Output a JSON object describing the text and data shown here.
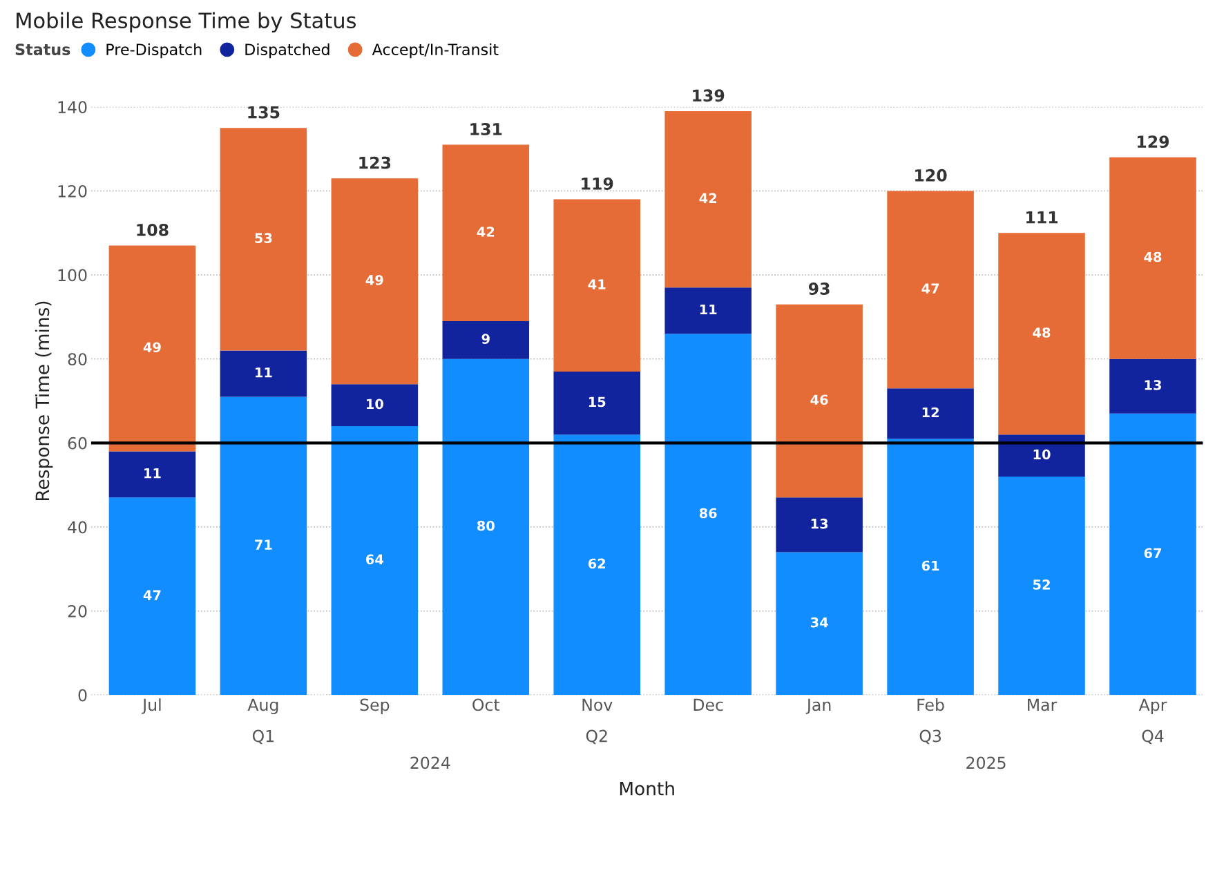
{
  "chart_data": {
    "type": "bar",
    "title": "Mobile Response Time by Status",
    "xlabel": "Month",
    "ylabel": "Response Time (mins)",
    "legend_title": "Status",
    "categories": [
      "Jul",
      "Aug",
      "Sep",
      "Oct",
      "Nov",
      "Dec",
      "Jan",
      "Feb",
      "Mar",
      "Apr"
    ],
    "series": [
      {
        "name": "Pre-Dispatch",
        "color": "#118dff",
        "values": [
          47,
          71,
          64,
          80,
          62,
          86,
          34,
          61,
          52,
          67
        ]
      },
      {
        "name": "Dispatched",
        "color": "#12239e",
        "values": [
          11,
          11,
          10,
          9,
          15,
          11,
          13,
          12,
          10,
          13
        ]
      },
      {
        "name": "Accept/In-Transit",
        "color": "#e66c37",
        "values": [
          49,
          53,
          49,
          42,
          41,
          42,
          46,
          47,
          48,
          48
        ]
      }
    ],
    "stacked": true,
    "data_labels": true,
    "totals": [
      "108",
      "135",
      "123",
      "131",
      "119",
      "139",
      "93",
      "120",
      "111",
      "129"
    ],
    "ylim": [
      0,
      140
    ],
    "yticks": [
      0,
      20,
      40,
      60,
      80,
      100,
      120,
      140
    ],
    "grid": "y",
    "legend": "top left",
    "ref_lines": [
      {
        "axis": "y",
        "value": 60,
        "color": "#000000"
      }
    ],
    "annotations": [
      "Q1",
      "Q2",
      "Q3",
      "Q4",
      "2024",
      "2025"
    ]
  }
}
